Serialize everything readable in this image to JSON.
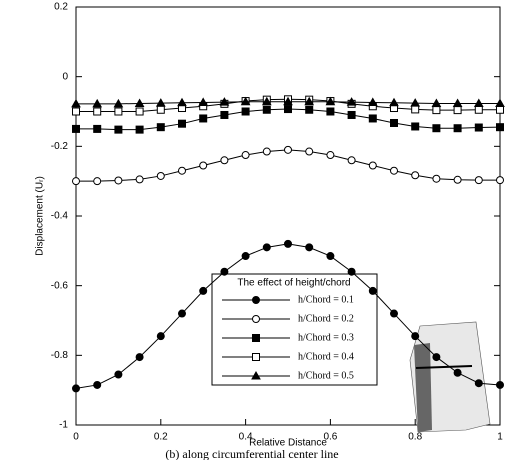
{
  "chart_data": {
    "type": "line",
    "caption": "(b) along circumferential center line",
    "xlabel": "Relative Distance",
    "ylabel": "Displacement (Uᵣ)",
    "legend_title": "The effect of height/chord",
    "legend_position": "lower center",
    "x": [
      0,
      0.05,
      0.1,
      0.15,
      0.2,
      0.25,
      0.3,
      0.35,
      0.4,
      0.45,
      0.5,
      0.55,
      0.6,
      0.65,
      0.7,
      0.75,
      0.8,
      0.85,
      0.9,
      0.95,
      1
    ],
    "xlim": [
      0,
      1
    ],
    "xticks": [
      0,
      0.2,
      0.4,
      0.6,
      0.8,
      1
    ],
    "ylim": [
      -1,
      0.2
    ],
    "yticks": [
      0.2,
      0,
      -0.2,
      -0.4,
      -0.6,
      -0.8,
      -1
    ],
    "series": [
      {
        "name": "h/Chord = 0.1",
        "color": "#000000",
        "marker": "filled-circle",
        "values": [
          -0.895,
          -0.885,
          -0.855,
          -0.805,
          -0.745,
          -0.68,
          -0.615,
          -0.56,
          -0.515,
          -0.49,
          -0.48,
          -0.49,
          -0.515,
          -0.56,
          -0.615,
          -0.68,
          -0.745,
          -0.805,
          -0.85,
          -0.88,
          -0.885
        ]
      },
      {
        "name": "h/Chord = 0.2",
        "color": "#000000",
        "marker": "open-circle",
        "values": [
          -0.3,
          -0.3,
          -0.298,
          -0.295,
          -0.285,
          -0.27,
          -0.255,
          -0.24,
          -0.225,
          -0.215,
          -0.21,
          -0.215,
          -0.225,
          -0.24,
          -0.255,
          -0.27,
          -0.283,
          -0.293,
          -0.296,
          -0.297,
          -0.297
        ]
      },
      {
        "name": "h/Chord = 0.3",
        "color": "#000000",
        "marker": "filled-square",
        "values": [
          -0.15,
          -0.15,
          -0.152,
          -0.152,
          -0.145,
          -0.135,
          -0.12,
          -0.11,
          -0.1,
          -0.095,
          -0.093,
          -0.095,
          -0.1,
          -0.11,
          -0.12,
          -0.133,
          -0.143,
          -0.148,
          -0.148,
          -0.146,
          -0.145
        ]
      },
      {
        "name": "h/Chord = 0.4",
        "color": "#000000",
        "marker": "open-square",
        "values": [
          -0.1,
          -0.1,
          -0.1,
          -0.1,
          -0.095,
          -0.09,
          -0.085,
          -0.078,
          -0.07,
          -0.066,
          -0.065,
          -0.066,
          -0.07,
          -0.078,
          -0.085,
          -0.09,
          -0.094,
          -0.096,
          -0.096,
          -0.095,
          -0.095
        ]
      },
      {
        "name": "h/Chord = 0.5",
        "color": "#000000",
        "marker": "triangle",
        "values": [
          -0.078,
          -0.078,
          -0.078,
          -0.077,
          -0.076,
          -0.075,
          -0.074,
          -0.073,
          -0.072,
          -0.072,
          -0.072,
          -0.072,
          -0.072,
          -0.073,
          -0.074,
          -0.075,
          -0.076,
          -0.077,
          -0.077,
          -0.077,
          -0.077
        ]
      }
    ]
  }
}
